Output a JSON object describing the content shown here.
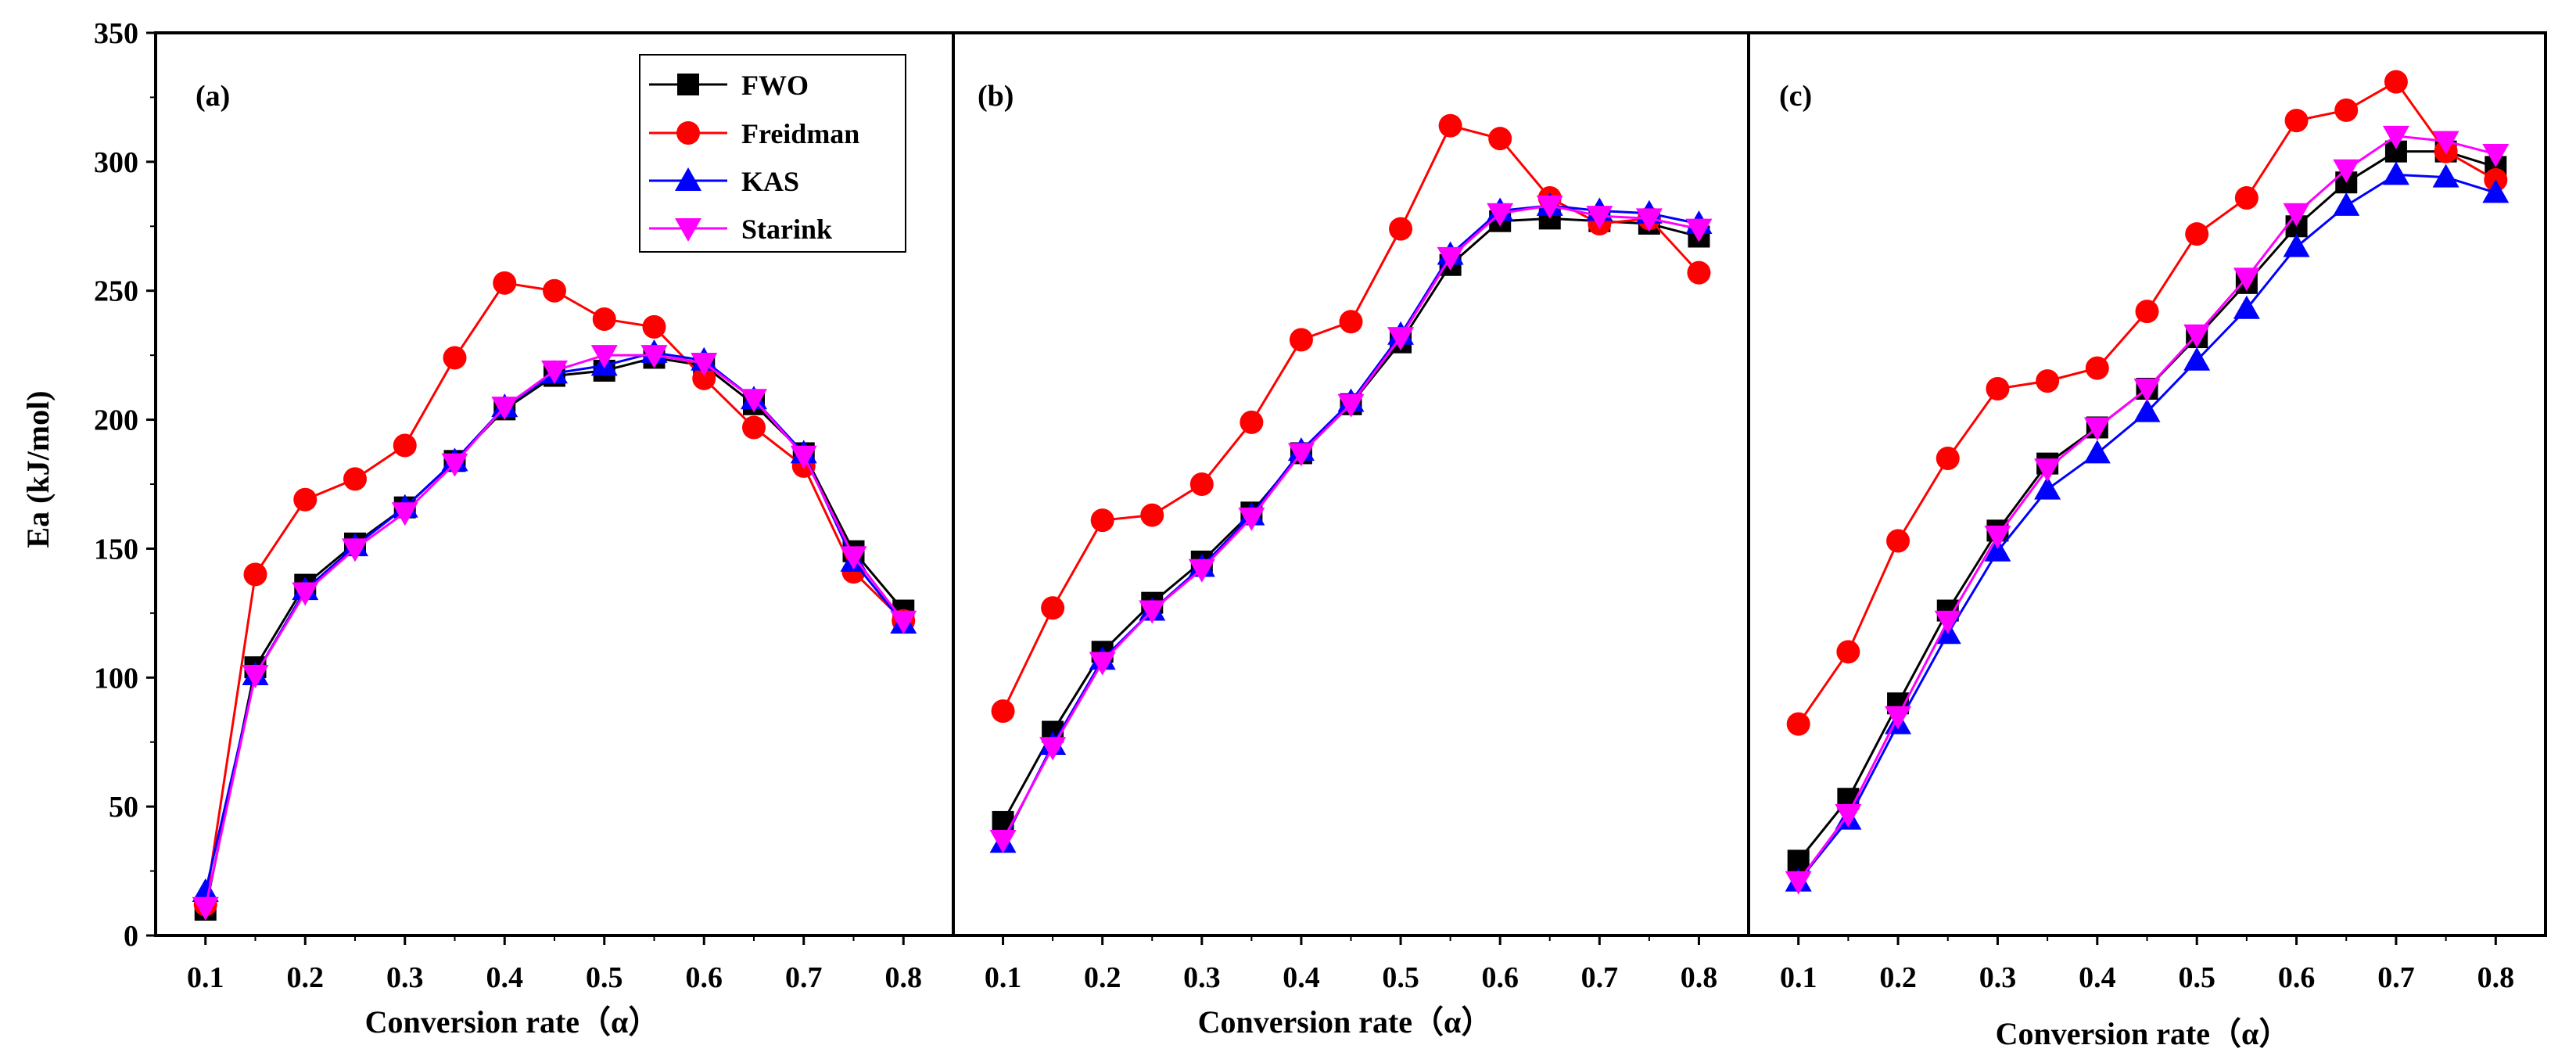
{
  "colors": {
    "FWO": "#000000",
    "Freidman": "#ff0000",
    "KAS": "#0000ff",
    "Starink": "#ff00ff"
  },
  "legend": [
    "FWO",
    "Freidman",
    "KAS",
    "Starink"
  ],
  "ylabel": "Ea (kJ/mol)",
  "chart_data": [
    {
      "type": "line",
      "panel": "(a)",
      "xlabel": "Conversion rate（α）",
      "ylabel": "Ea (kJ/mol)",
      "ylim": [
        0,
        350
      ],
      "xlim": [
        0.05,
        0.85
      ],
      "xticks": [
        "0.1",
        "0.2",
        "0.3",
        "0.4",
        "0.5",
        "0.6",
        "0.7",
        "0.8"
      ],
      "yticks": [
        "0",
        "50",
        "100",
        "150",
        "200",
        "250",
        "300",
        "350"
      ],
      "x": [
        0.1,
        0.15,
        0.2,
        0.25,
        0.3,
        0.35,
        0.4,
        0.45,
        0.5,
        0.55,
        0.6,
        0.65,
        0.7,
        0.75,
        0.8
      ],
      "series": [
        {
          "name": "FWO",
          "marker": "square",
          "values": [
            10,
            104,
            136,
            152,
            166,
            184,
            204,
            217,
            219,
            224,
            221,
            206,
            187,
            149,
            126
          ]
        },
        {
          "name": "Freidman",
          "marker": "circle",
          "values": [
            12,
            140,
            169,
            177,
            190,
            224,
            253,
            250,
            239,
            236,
            216,
            197,
            182,
            141,
            122
          ]
        },
        {
          "name": "KAS",
          "marker": "triangle-up",
          "values": [
            17,
            101,
            134,
            151,
            166,
            184,
            205,
            218,
            221,
            226,
            223,
            208,
            187,
            145,
            121
          ]
        },
        {
          "name": "Starink",
          "marker": "triangle-down",
          "values": [
            11,
            101,
            133,
            150,
            164,
            183,
            205,
            219,
            225,
            225,
            222,
            208,
            186,
            147,
            122
          ]
        }
      ]
    },
    {
      "type": "line",
      "panel": "(b)",
      "xlabel": "Conversion rate（α）",
      "ylim": [
        0,
        350
      ],
      "xlim": [
        0.05,
        0.85
      ],
      "xticks": [
        "0.1",
        "0.2",
        "0.3",
        "0.4",
        "0.5",
        "0.6",
        "0.7",
        "0.8"
      ],
      "x": [
        0.1,
        0.15,
        0.2,
        0.25,
        0.3,
        0.35,
        0.4,
        0.45,
        0.5,
        0.55,
        0.6,
        0.65,
        0.7,
        0.75,
        0.8
      ],
      "series": [
        {
          "name": "FWO",
          "marker": "square",
          "values": [
            44,
            79,
            110,
            129,
            145,
            164,
            187,
            206,
            230,
            260,
            277,
            278,
            277,
            276,
            271
          ]
        },
        {
          "name": "Freidman",
          "marker": "circle",
          "values": [
            87,
            127,
            161,
            163,
            175,
            199,
            231,
            238,
            274,
            314,
            309,
            286,
            276,
            278,
            257
          ]
        },
        {
          "name": "KAS",
          "marker": "triangle-up",
          "values": [
            36,
            74,
            107,
            126,
            143,
            163,
            188,
            207,
            233,
            264,
            281,
            283,
            281,
            280,
            276
          ]
        },
        {
          "name": "Starink",
          "marker": "triangle-down",
          "values": [
            37,
            73,
            106,
            126,
            142,
            162,
            187,
            206,
            232,
            263,
            280,
            283,
            279,
            278,
            274
          ]
        }
      ]
    },
    {
      "type": "line",
      "panel": "(c)",
      "xlabel": "Conversion rate（α）",
      "ylim": [
        0,
        350
      ],
      "xlim": [
        0.05,
        0.85
      ],
      "xticks": [
        "0.1",
        "0.2",
        "0.3",
        "0.4",
        "0.5",
        "0.6",
        "0.7",
        "0.8"
      ],
      "x": [
        0.1,
        0.15,
        0.2,
        0.25,
        0.3,
        0.35,
        0.4,
        0.45,
        0.5,
        0.55,
        0.6,
        0.65,
        0.7,
        0.75,
        0.8
      ],
      "series": [
        {
          "name": "FWO",
          "marker": "square",
          "values": [
            29,
            53,
            90,
            126,
            157,
            183,
            197,
            212,
            232,
            253,
            275,
            292,
            304,
            304,
            298
          ]
        },
        {
          "name": "Freidman",
          "marker": "circle",
          "values": [
            82,
            110,
            153,
            185,
            212,
            215,
            220,
            242,
            272,
            286,
            316,
            320,
            331,
            304,
            293
          ]
        },
        {
          "name": "KAS",
          "marker": "triangle-up",
          "values": [
            21,
            45,
            82,
            117,
            149,
            173,
            187,
            203,
            223,
            243,
            267,
            283,
            295,
            294,
            288
          ]
        },
        {
          "name": "Starink",
          "marker": "triangle-down",
          "values": [
            21,
            47,
            85,
            122,
            155,
            181,
            197,
            212,
            233,
            255,
            280,
            297,
            310,
            308,
            303
          ]
        }
      ]
    }
  ]
}
